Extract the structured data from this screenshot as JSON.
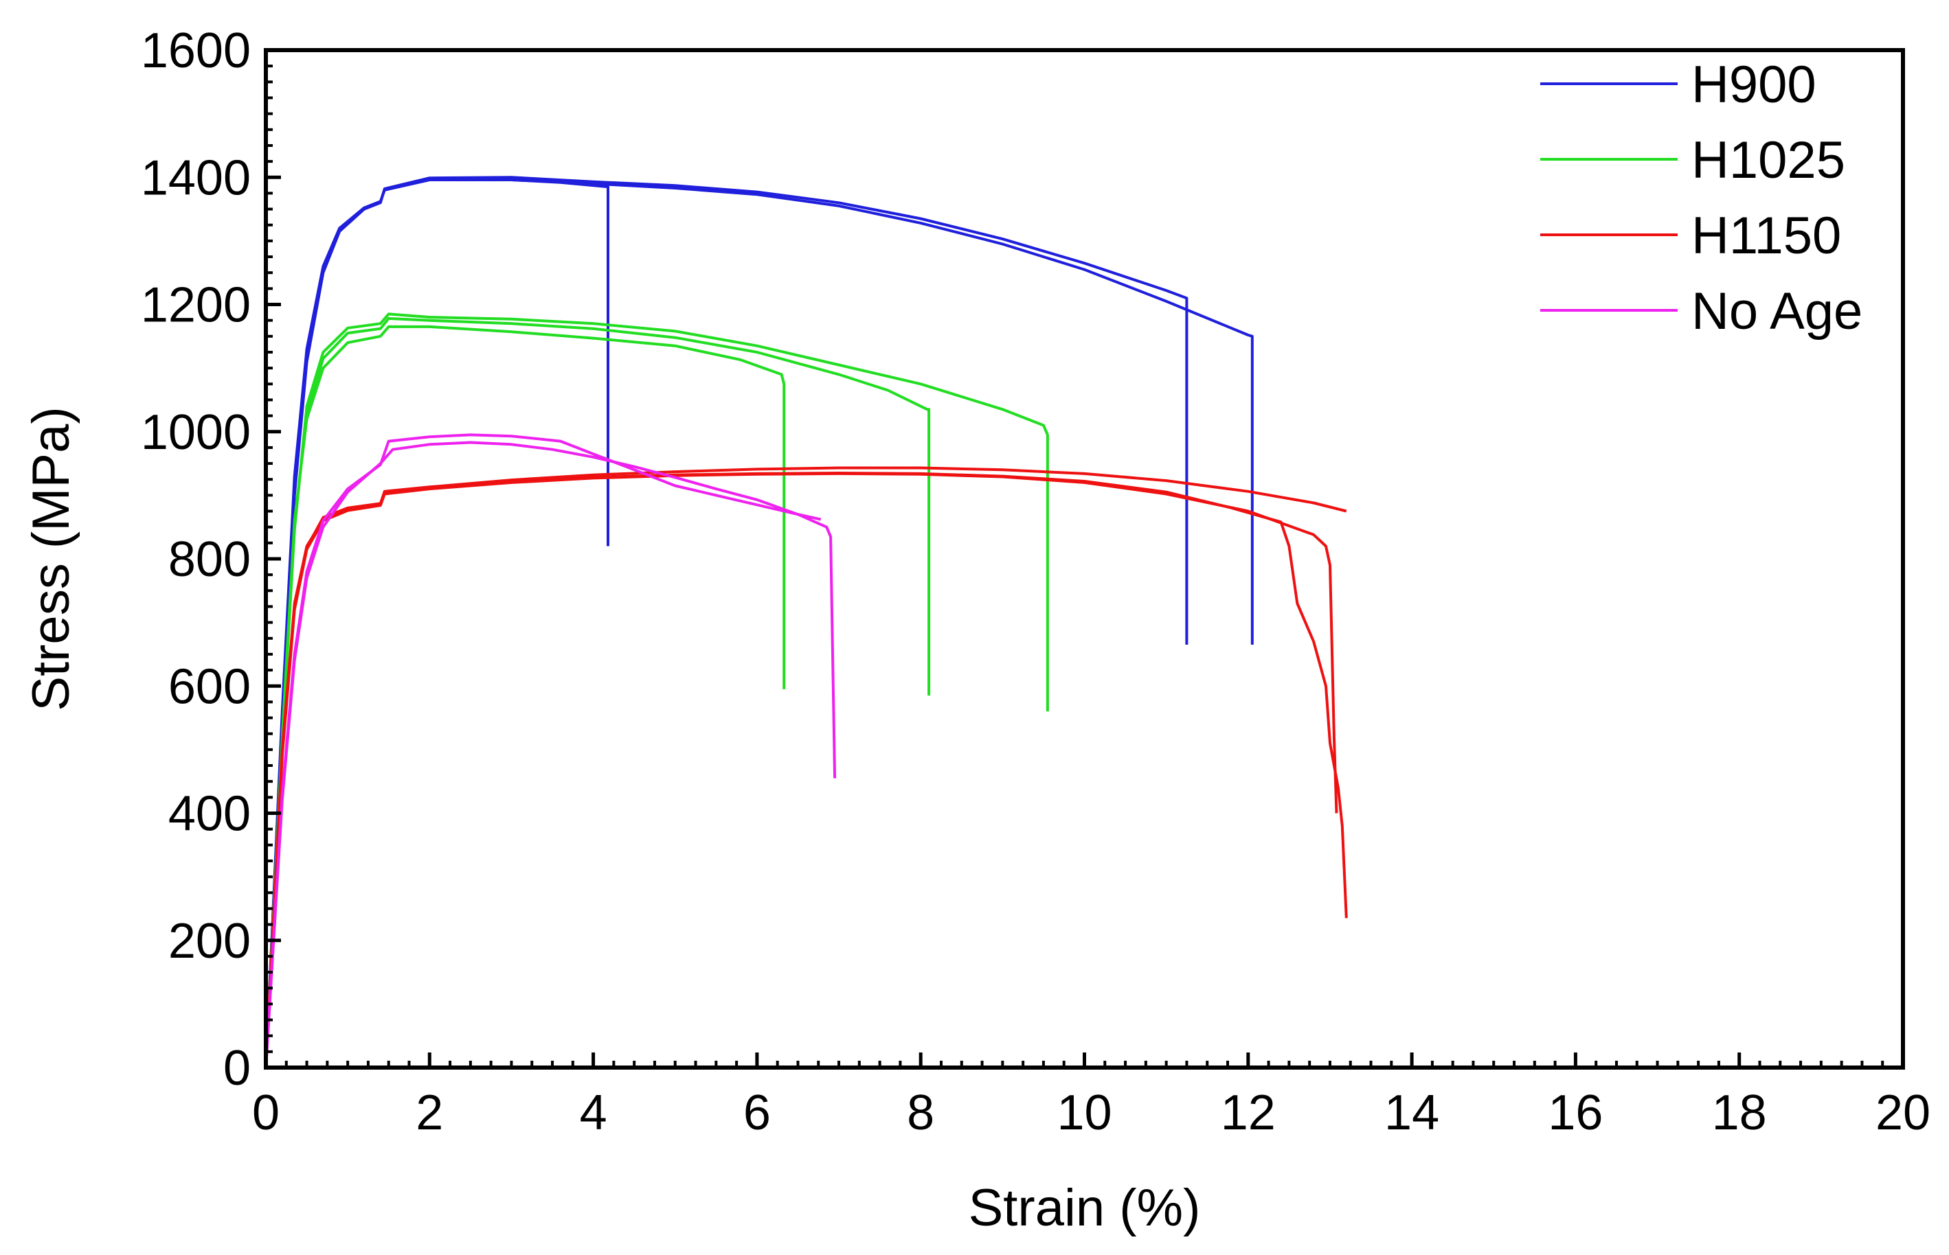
{
  "chart_data": {
    "type": "line",
    "title": "",
    "xlabel": "Strain (%)",
    "ylabel": "Stress (MPa)",
    "xlim": [
      0,
      20
    ],
    "ylim": [
      0,
      1600
    ],
    "xticks": [
      "0",
      "2",
      "4",
      "6",
      "8",
      "10",
      "12",
      "14",
      "16",
      "18",
      "20"
    ],
    "yticks": [
      "0",
      "200",
      "400",
      "600",
      "800",
      "1000",
      "1200",
      "1400",
      "1600"
    ],
    "grid": false,
    "legend_position": "top-right",
    "series": [
      {
        "name": "H900",
        "color": "#1f1fdc",
        "curves": [
          [
            [
              0,
              0
            ],
            [
              0.2,
              560
            ],
            [
              0.35,
              930
            ],
            [
              0.5,
              1130
            ],
            [
              0.7,
              1260
            ],
            [
              0.9,
              1320
            ],
            [
              1.2,
              1352
            ],
            [
              1.4,
              1362
            ],
            [
              1.45,
              1380
            ],
            [
              2,
              1396
            ],
            [
              3,
              1396
            ],
            [
              3.6,
              1392
            ],
            [
              4.18,
              1385
            ],
            [
              4.18,
              820
            ]
          ],
          [
            [
              0,
              0
            ],
            [
              0.2,
              540
            ],
            [
              0.35,
              900
            ],
            [
              0.5,
              1110
            ],
            [
              0.7,
              1250
            ],
            [
              0.9,
              1315
            ],
            [
              1.2,
              1350
            ],
            [
              1.4,
              1360
            ],
            [
              1.45,
              1382
            ],
            [
              2,
              1399
            ],
            [
              3,
              1400
            ],
            [
              4,
              1393
            ],
            [
              5,
              1387
            ],
            [
              6,
              1377
            ],
            [
              7,
              1360
            ],
            [
              8,
              1335
            ],
            [
              9,
              1303
            ],
            [
              10,
              1265
            ],
            [
              11,
              1222
            ],
            [
              11.25,
              1210
            ],
            [
              11.25,
              665
            ]
          ],
          [
            [
              0,
              0
            ],
            [
              0.2,
              550
            ],
            [
              0.35,
              915
            ],
            [
              0.5,
              1120
            ],
            [
              0.7,
              1255
            ],
            [
              0.9,
              1318
            ],
            [
              1.2,
              1351
            ],
            [
              1.4,
              1361
            ],
            [
              1.45,
              1381
            ],
            [
              2,
              1397
            ],
            [
              3,
              1396
            ],
            [
              4,
              1390
            ],
            [
              5,
              1383
            ],
            [
              6,
              1373
            ],
            [
              7,
              1355
            ],
            [
              8,
              1328
            ],
            [
              9,
              1295
            ],
            [
              10,
              1255
            ],
            [
              11,
              1205
            ],
            [
              12,
              1152
            ],
            [
              12.05,
              1150
            ],
            [
              12.05,
              665
            ]
          ]
        ]
      },
      {
        "name": "H1025",
        "color": "#22dd22",
        "curves": [
          [
            [
              0,
              0
            ],
            [
              0.2,
              520
            ],
            [
              0.35,
              860
            ],
            [
              0.5,
              1020
            ],
            [
              0.7,
              1100
            ],
            [
              1.0,
              1140
            ],
            [
              1.4,
              1150
            ],
            [
              1.5,
              1165
            ],
            [
              2,
              1165
            ],
            [
              3,
              1157
            ],
            [
              4,
              1147
            ],
            [
              5,
              1135
            ],
            [
              5.8,
              1113
            ],
            [
              6.3,
              1090
            ],
            [
              6.33,
              1075
            ],
            [
              6.33,
              595
            ]
          ],
          [
            [
              0,
              0
            ],
            [
              0.2,
              515
            ],
            [
              0.35,
              850
            ],
            [
              0.5,
              1030
            ],
            [
              0.7,
              1115
            ],
            [
              1.0,
              1155
            ],
            [
              1.4,
              1162
            ],
            [
              1.5,
              1178
            ],
            [
              2,
              1175
            ],
            [
              3,
              1170
            ],
            [
              4,
              1162
            ],
            [
              5,
              1148
            ],
            [
              6,
              1125
            ],
            [
              7,
              1090
            ],
            [
              7.6,
              1065
            ],
            [
              8.08,
              1035
            ],
            [
              8.1,
              1035
            ],
            [
              8.1,
              585
            ]
          ],
          [
            [
              0,
              0
            ],
            [
              0.2,
              510
            ],
            [
              0.35,
              845
            ],
            [
              0.5,
              1040
            ],
            [
              0.7,
              1125
            ],
            [
              1.0,
              1163
            ],
            [
              1.4,
              1170
            ],
            [
              1.5,
              1185
            ],
            [
              2,
              1180
            ],
            [
              3,
              1177
            ],
            [
              4,
              1170
            ],
            [
              5,
              1158
            ],
            [
              6,
              1135
            ],
            [
              7,
              1105
            ],
            [
              8,
              1075
            ],
            [
              9,
              1035
            ],
            [
              9.5,
              1010
            ],
            [
              9.55,
              995
            ],
            [
              9.55,
              560
            ]
          ]
        ]
      },
      {
        "name": "H1150",
        "color": "#ee1111",
        "curves": [
          [
            [
              0,
              0
            ],
            [
              0.2,
              500
            ],
            [
              0.35,
              730
            ],
            [
              0.5,
              820
            ],
            [
              0.7,
              862
            ],
            [
              1.0,
              878
            ],
            [
              1.4,
              885
            ],
            [
              1.45,
              905
            ],
            [
              2,
              912
            ],
            [
              3,
              922
            ],
            [
              4,
              928
            ],
            [
              5,
              932
            ],
            [
              6,
              934
            ],
            [
              7,
              935
            ],
            [
              8,
              934
            ],
            [
              9,
              930
            ],
            [
              10,
              922
            ],
            [
              11,
              905
            ],
            [
              11.8,
              880
            ],
            [
              12.4,
              858
            ],
            [
              12.5,
              820
            ],
            [
              12.6,
              730
            ],
            [
              12.8,
              670
            ],
            [
              12.95,
              600
            ],
            [
              13.0,
              510
            ],
            [
              13.1,
              440
            ],
            [
              13.15,
              380
            ],
            [
              13.2,
              235
            ]
          ],
          [
            [
              0,
              0
            ],
            [
              0.2,
              490
            ],
            [
              0.35,
              720
            ],
            [
              0.5,
              815
            ],
            [
              0.7,
              860
            ],
            [
              1.0,
              876
            ],
            [
              1.4,
              884
            ],
            [
              1.45,
              902
            ],
            [
              2,
              910
            ],
            [
              3,
              920
            ],
            [
              4,
              927
            ],
            [
              5,
              931
            ],
            [
              6,
              933
            ],
            [
              7,
              934
            ],
            [
              8,
              933
            ],
            [
              9,
              929
            ],
            [
              10,
              920
            ],
            [
              11,
              902
            ],
            [
              12,
              875
            ],
            [
              12.8,
              838
            ],
            [
              12.95,
              820
            ],
            [
              13.0,
              790
            ],
            [
              13.05,
              520
            ],
            [
              13.08,
              400
            ]
          ],
          [
            [
              0,
              0
            ],
            [
              0.2,
              495
            ],
            [
              0.35,
              725
            ],
            [
              0.5,
              818
            ],
            [
              0.7,
              865
            ],
            [
              1.0,
              880
            ],
            [
              1.4,
              887
            ],
            [
              1.45,
              906
            ],
            [
              2,
              913
            ],
            [
              3,
              924
            ],
            [
              4,
              932
            ],
            [
              5,
              937
            ],
            [
              6,
              941
            ],
            [
              7,
              943
            ],
            [
              8,
              943
            ],
            [
              9,
              940
            ],
            [
              10,
              934
            ],
            [
              11,
              923
            ],
            [
              12,
              906
            ],
            [
              12.8,
              888
            ],
            [
              13.2,
              875
            ]
          ]
        ]
      },
      {
        "name": "No Age",
        "color": "#ee22ee",
        "curves": [
          [
            [
              0,
              0
            ],
            [
              0.2,
              430
            ],
            [
              0.35,
              650
            ],
            [
              0.5,
              780
            ],
            [
              0.7,
              860
            ],
            [
              1.0,
              910
            ],
            [
              1.4,
              948
            ],
            [
              1.5,
              985
            ],
            [
              2,
              992
            ],
            [
              2.5,
              995
            ],
            [
              3,
              993
            ],
            [
              3.6,
              985
            ],
            [
              4,
              965
            ],
            [
              4.5,
              940
            ],
            [
              5,
              915
            ],
            [
              5.5,
              900
            ],
            [
              6,
              885
            ],
            [
              6.5,
              870
            ],
            [
              6.78,
              862
            ]
          ],
          [
            [
              0,
              0
            ],
            [
              0.2,
              420
            ],
            [
              0.35,
              640
            ],
            [
              0.5,
              770
            ],
            [
              0.7,
              850
            ],
            [
              1.0,
              905
            ],
            [
              1.4,
              950
            ],
            [
              1.55,
              972
            ],
            [
              2,
              980
            ],
            [
              2.5,
              983
            ],
            [
              3,
              980
            ],
            [
              3.5,
              972
            ],
            [
              4,
              960
            ],
            [
              4.5,
              945
            ],
            [
              5,
              928
            ],
            [
              5.5,
              910
            ],
            [
              6,
              893
            ],
            [
              6.5,
              870
            ],
            [
              6.85,
              850
            ],
            [
              6.9,
              835
            ],
            [
              6.95,
              455
            ]
          ]
        ]
      }
    ]
  }
}
